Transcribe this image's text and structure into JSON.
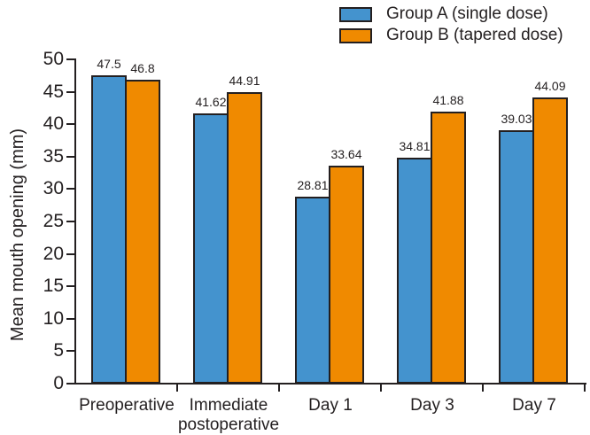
{
  "chart_data": {
    "type": "bar",
    "title": "",
    "categories": [
      "Preoperative",
      "Immediate postoperative",
      "Day 1",
      "Day 3",
      "Day 7"
    ],
    "series": [
      {
        "name": "Group A (single dose)",
        "color": "#4493ce",
        "values": [
          47.5,
          41.62,
          28.81,
          34.81,
          39.03
        ]
      },
      {
        "name": "Group B (tapered dose)",
        "color": "#f08a00",
        "values": [
          46.8,
          44.91,
          33.64,
          41.88,
          44.09
        ]
      }
    ],
    "xlabel": "",
    "ylabel": "Mean mouth opening (mm)",
    "ylim": [
      0,
      50
    ],
    "yticks": [
      0,
      5,
      10,
      15,
      20,
      25,
      30,
      35,
      40,
      45,
      50
    ],
    "grid": false,
    "legend_position": "top-right",
    "bar_outline_color": "#231f20",
    "axis_color": "#231f20",
    "value_labels_shown": true
  },
  "legend": {
    "items": [
      {
        "label": "Group A (single dose)",
        "color": "#4493ce"
      },
      {
        "label": "Group B (tapered dose)",
        "color": "#f08a00"
      }
    ]
  }
}
